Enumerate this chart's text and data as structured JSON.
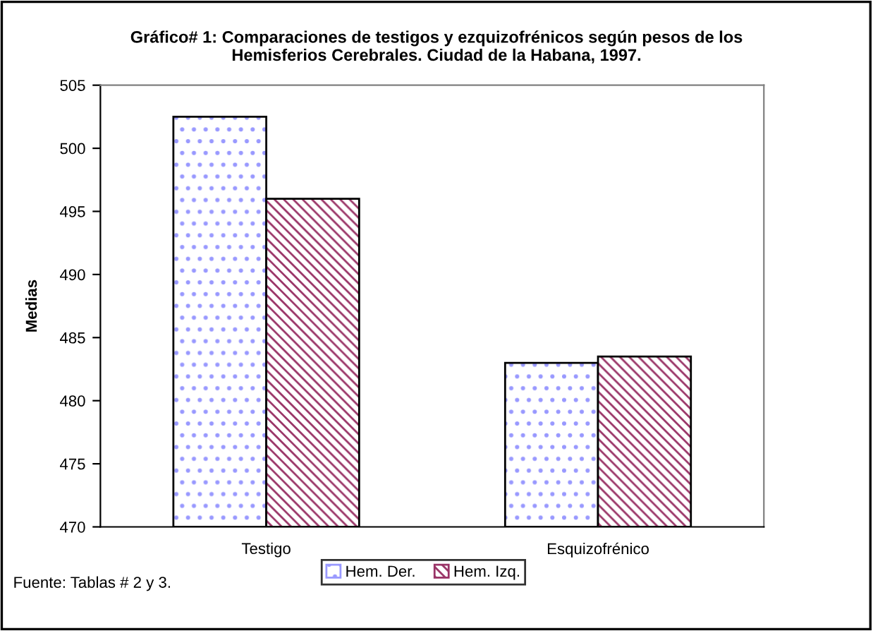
{
  "chart_data": {
    "type": "bar",
    "title": "Gráfico# 1: Comparaciones de testigos y ezquizofrénicos según pesos de los\nHemisferios Cerebrales. Ciudad de la Habana, 1997.",
    "ylabel": "Medias",
    "categories": [
      "Testigo",
      "Esquizofrénico"
    ],
    "series": [
      {
        "name": "Hem. Der.",
        "color": "#9999ff",
        "values": [
          502.5,
          483
        ]
      },
      {
        "name": "Hem. Izq.",
        "color": "#993366",
        "values": [
          496,
          483.5
        ]
      }
    ],
    "ylim": [
      470,
      505
    ],
    "yticks": [
      470,
      475,
      480,
      485,
      490,
      495,
      500,
      505
    ],
    "legend": "bottom",
    "annotations": [
      "Fuente: Tablas # 2 y 3."
    ]
  }
}
